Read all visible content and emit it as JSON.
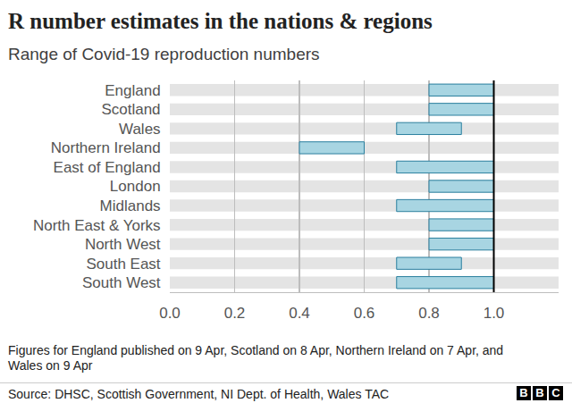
{
  "chart_data": {
    "type": "bar",
    "orientation": "horizontal",
    "title": "R number estimates in the nations & regions",
    "subtitle": "Range of Covid-19 reproduction numbers",
    "categories": [
      "England",
      "Scotland",
      "Wales",
      "Northern Ireland",
      "East of England",
      "London",
      "Midlands",
      "North East & Yorks",
      "North West",
      "South East",
      "South West"
    ],
    "values": [
      [
        0.8,
        1.0
      ],
      [
        0.8,
        1.0
      ],
      [
        0.7,
        0.9
      ],
      [
        0.4,
        0.6
      ],
      [
        0.7,
        1.0
      ],
      [
        0.8,
        1.0
      ],
      [
        0.7,
        1.0
      ],
      [
        0.8,
        1.0
      ],
      [
        0.8,
        1.0
      ],
      [
        0.7,
        0.9
      ],
      [
        0.7,
        1.0
      ]
    ],
    "color": "#a8d5e2",
    "xlim": [
      0,
      1.2
    ],
    "xticks": [
      {
        "value": 0,
        "label": "0.0"
      },
      0.2,
      0.4,
      0.6,
      0.8,
      {
        "value": 1,
        "label": "1.0"
      }
    ],
    "grid": true,
    "footnote": "Figures for England published on 9 Apr, Scotland on 8 Apr, Northern Ireland on 7 Apr, and Wales on 9 Apr",
    "source": "Source: DHSC, Scottish Government, NI Dept. of Health, Wales TAC",
    "logo": "BBC"
  }
}
